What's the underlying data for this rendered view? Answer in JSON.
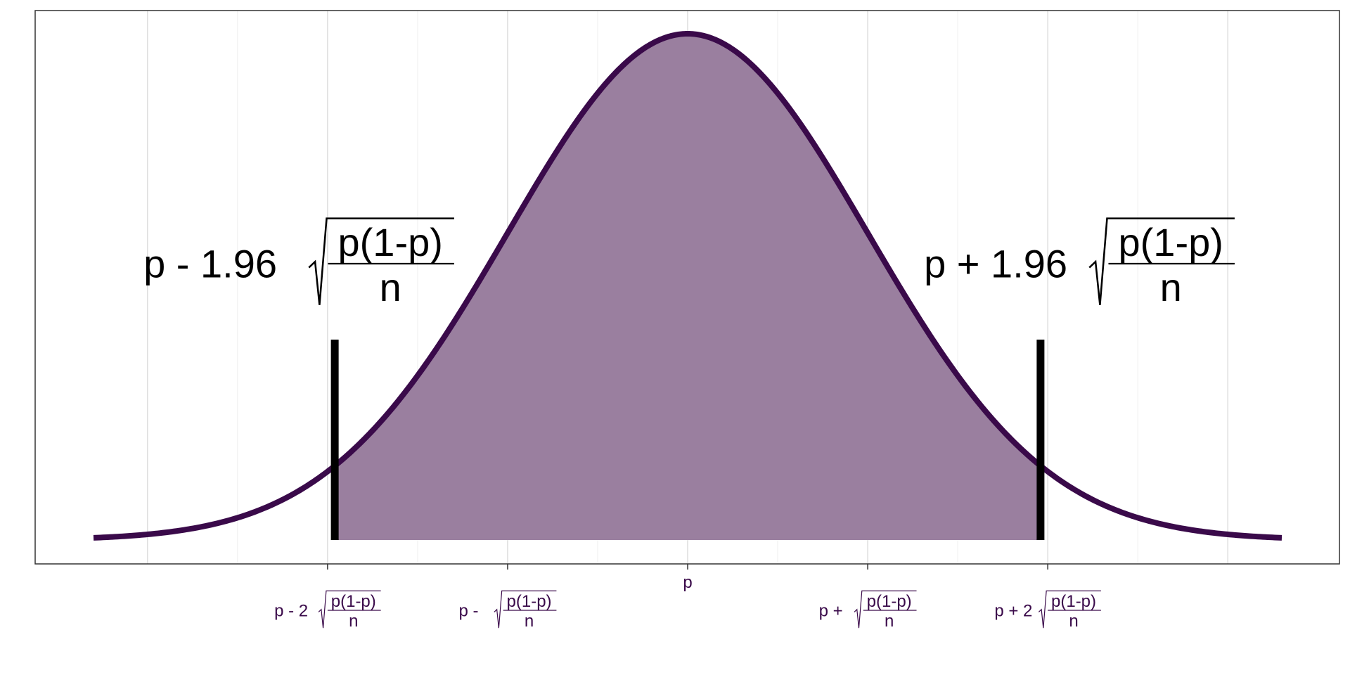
{
  "chart_data": {
    "type": "area",
    "title": "",
    "xlabel": "",
    "ylabel": "",
    "xlim": [
      -3.3,
      3.3
    ],
    "ylim": [
      0,
      0.42
    ],
    "grid": true,
    "legend": "none",
    "colors": {
      "curve": "#3a0a4a",
      "fill": "#9a7f9f",
      "bounds": "#000000",
      "tick_label": "#3a0a4a",
      "grid": "#e3e3e3",
      "panel_border": "#333333"
    },
    "distribution": {
      "name": "normal",
      "mean": 0,
      "sd": 1
    },
    "shaded_interval": [
      -1.96,
      1.96
    ],
    "x_ticks": [
      {
        "value": -2,
        "prefix": "p - 2",
        "numerator": "p(1-p)",
        "denominator": "n"
      },
      {
        "value": -1,
        "prefix": "p - ",
        "numerator": "p(1-p)",
        "denominator": "n"
      },
      {
        "value": 0,
        "prefix": "p",
        "numerator": "",
        "denominator": ""
      },
      {
        "value": 1,
        "prefix": "p + ",
        "numerator": "p(1-p)",
        "denominator": "n"
      },
      {
        "value": 2,
        "prefix": "p + 2",
        "numerator": "p(1-p)",
        "denominator": "n"
      }
    ],
    "annotations": [
      {
        "x": -1.96,
        "prefix": "p - 1.96",
        "numerator": "p(1-p)",
        "denominator": "n"
      },
      {
        "x": 1.96,
        "prefix": "p + 1.96",
        "numerator": "p(1-p)",
        "denominator": "n"
      }
    ]
  }
}
